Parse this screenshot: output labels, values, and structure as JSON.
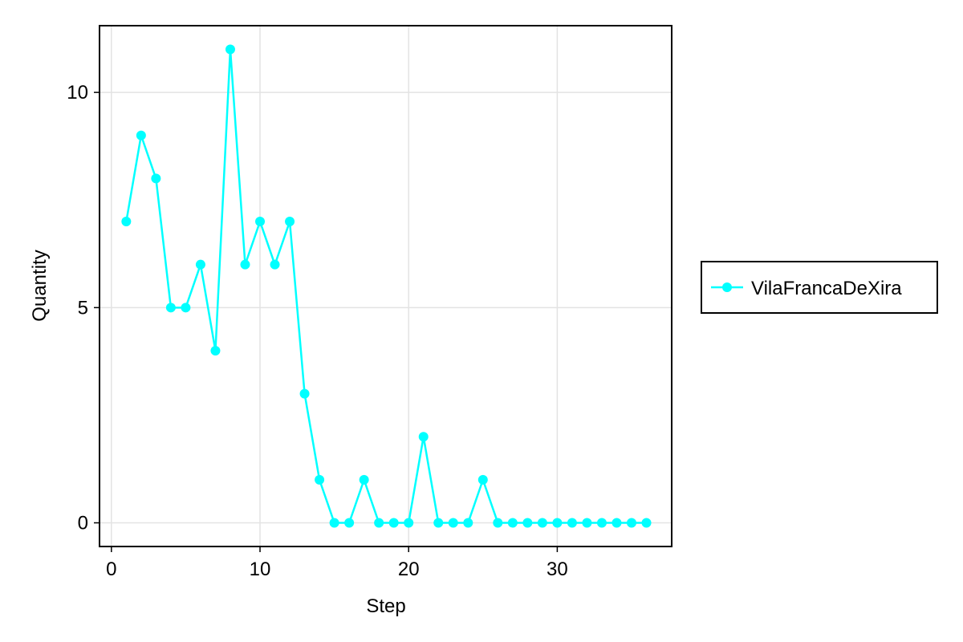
{
  "chart_data": {
    "type": "line",
    "title": "",
    "xlabel": "Step",
    "ylabel": "Quantity",
    "xlim": [
      -0.8,
      37.7
    ],
    "ylim": [
      -0.55,
      11.55
    ],
    "xticks": [
      0,
      10,
      20,
      30
    ],
    "yticks": [
      0,
      5,
      10
    ],
    "xtick_labels": [
      "0",
      "10",
      "20",
      "30"
    ],
    "ytick_labels": [
      "0",
      "5",
      "10"
    ],
    "grid": true,
    "legend_position": "right",
    "series": [
      {
        "name": "VilaFrancaDeXira",
        "color": "#00FFFF",
        "marker": "circle",
        "x": [
          1,
          2,
          3,
          4,
          5,
          6,
          7,
          8,
          9,
          10,
          11,
          12,
          13,
          14,
          15,
          16,
          17,
          18,
          19,
          20,
          21,
          22,
          23,
          24,
          25,
          26,
          27,
          28,
          29,
          30,
          31,
          32,
          33,
          34,
          35,
          36
        ],
        "y": [
          7,
          9,
          8,
          5,
          5,
          6,
          4,
          11,
          6,
          7,
          6,
          7,
          3,
          1,
          0,
          0,
          1,
          0,
          0,
          0,
          2,
          0,
          0,
          0,
          1,
          0,
          0,
          0,
          0,
          0,
          0,
          0,
          0,
          0,
          0,
          0
        ]
      }
    ]
  }
}
